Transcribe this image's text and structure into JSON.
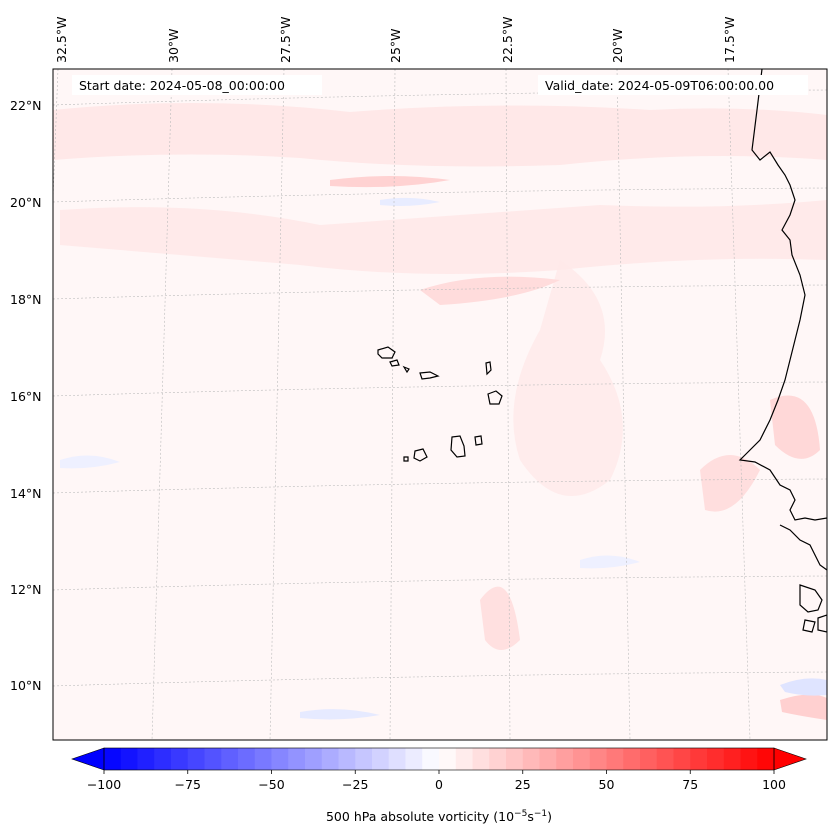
{
  "map": {
    "annotations": {
      "start_date": "Start date: 2024-05-08_00:00:00",
      "valid_date": "Valid_date: 2024-05-09T06:00:00.00"
    },
    "longitude_labels": [
      "32.5°W",
      "30°W",
      "27.5°W",
      "25°W",
      "22.5°W",
      "20°W",
      "17.5°W"
    ],
    "latitude_labels": [
      "22°N",
      "20°N",
      "18°N",
      "16°N",
      "14°N",
      "12°N",
      "10°N"
    ],
    "gridlines": true,
    "coastline_color": "#000000"
  },
  "colorbar": {
    "label_prefix": "500 hPa absolute vorticity (10",
    "label_exp1": "−5",
    "label_mid": "s",
    "label_exp2": "−1",
    "label_suffix": ")",
    "tick_labels": [
      "−100",
      "−75",
      "−50",
      "−25",
      "0",
      "25",
      "50",
      "75",
      "100"
    ],
    "range": [
      -100,
      100
    ],
    "min_color": "#0000ff",
    "mid_color": "#ffffff",
    "max_color": "#ff0000",
    "extend": "both"
  }
}
